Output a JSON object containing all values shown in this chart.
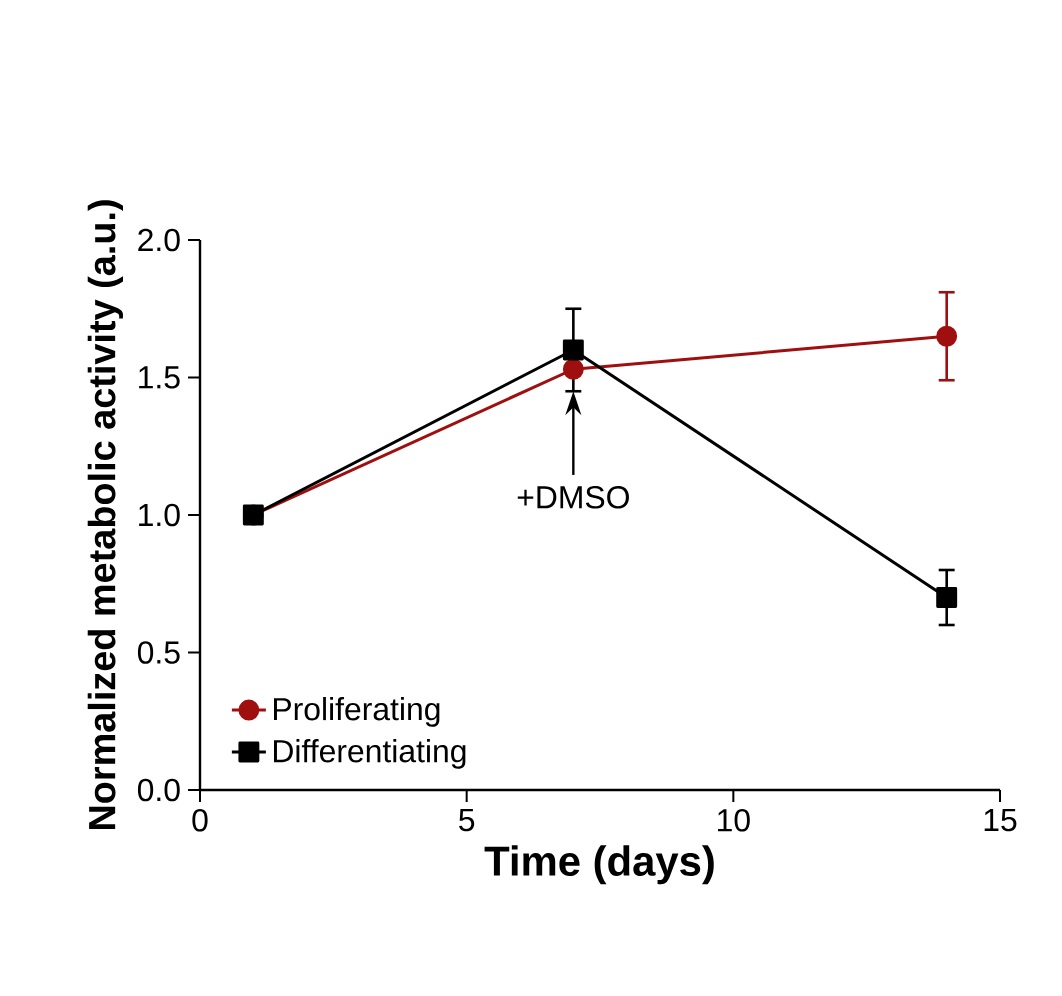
{
  "chart_data": {
    "type": "line",
    "xlabel": "Time (days)",
    "ylabel": "Normalized metabolic activity (a.u.)",
    "x": [
      1,
      7,
      14
    ],
    "series": [
      {
        "name": "Proliferating",
        "color": "#a00f0f",
        "values": [
          1.0,
          1.53,
          1.65
        ],
        "errors": [
          null,
          null,
          0.16
        ],
        "marker": "circle"
      },
      {
        "name": "Differentiating",
        "color": "#000000",
        "values": [
          1.0,
          1.6,
          0.7
        ],
        "errors": [
          null,
          0.15,
          0.1
        ],
        "marker": "square"
      }
    ],
    "xlim": [
      0,
      15
    ],
    "xticks": [
      0,
      5,
      10,
      15
    ],
    "ylim": [
      0,
      2
    ],
    "yticks": [
      {
        "value": 0,
        "label": "0.0"
      },
      {
        "value": 0.5,
        "label": "0.5"
      },
      {
        "value": 1,
        "label": "1.0"
      },
      {
        "value": 1.5,
        "label": "1.5"
      },
      {
        "value": 2,
        "label": "2.0"
      }
    ],
    "annotations": [
      {
        "text": "+DMSO",
        "x": 7,
        "y": 1.45
      }
    ],
    "legend": "bottom left",
    "grid": false
  }
}
